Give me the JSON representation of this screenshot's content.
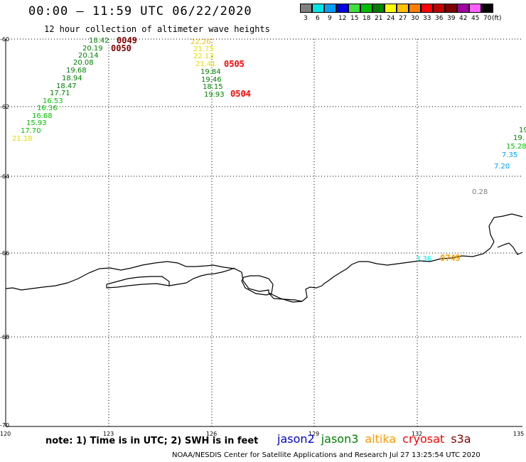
{
  "header": {
    "title": "00:00 – 11:59 UTC 06/22/2020",
    "subtitle": "12 hour collection of altimeter wave heights"
  },
  "legend": {
    "unit": "(ft)",
    "labels": [
      "3",
      "6",
      "9",
      "12",
      "15",
      "18",
      "21",
      "24",
      "27",
      "30",
      "33",
      "36",
      "39",
      "42",
      "45",
      "70"
    ],
    "colors": [
      "#808080",
      "#00e5e5",
      "#00a0ff",
      "#0000e0",
      "#40e040",
      "#00c000",
      "#008000",
      "#ffff00",
      "#ffc000",
      "#ff8000",
      "#ff0000",
      "#c00000",
      "#800000",
      "#a000a0",
      "#ff60ff",
      "#000000"
    ]
  },
  "axes": {
    "lon_ticks": [
      "120",
      "123",
      "126",
      "129",
      "132",
      "135"
    ],
    "lat_ticks": [
      "-60",
      "-62",
      "-64",
      "-66",
      "-68",
      "-70"
    ]
  },
  "tracks": [
    {
      "value": "18.42",
      "color": "#008000"
    },
    {
      "value": "20.19",
      "color": "#008000"
    },
    {
      "value": "20.14",
      "color": "#008000"
    },
    {
      "value": "20.08",
      "color": "#008000"
    },
    {
      "value": "19.68",
      "color": "#008000"
    },
    {
      "value": "18.94",
      "color": "#008000"
    },
    {
      "value": "18.47",
      "color": "#008000"
    },
    {
      "value": "17.71",
      "color": "#008000"
    },
    {
      "value": "16.53",
      "color": "#00c000"
    },
    {
      "value": "16.36",
      "color": "#00c000"
    },
    {
      "value": "16.68",
      "color": "#00c000"
    },
    {
      "value": "15.93",
      "color": "#00c000"
    },
    {
      "value": "17.70",
      "color": "#00c000"
    },
    {
      "value": "21.18",
      "color": "#e0e000"
    },
    {
      "value": "22.26",
      "color": "#ffc000"
    },
    {
      "value": "21.75",
      "color": "#e0e000"
    },
    {
      "value": "22.13",
      "color": "#e0e000"
    },
    {
      "value": "21.41",
      "color": "#e0e000"
    },
    {
      "value": "19.84",
      "color": "#008000"
    },
    {
      "value": "19.46",
      "color": "#008000"
    },
    {
      "value": "18.15",
      "color": "#008000"
    },
    {
      "value": "19.93",
      "color": "#008000"
    },
    {
      "value": "19",
      "color": "#008000"
    },
    {
      "value": "19.",
      "color": "#008000"
    },
    {
      "value": "15.28",
      "color": "#00c000"
    },
    {
      "value": "7.35",
      "color": "#00a0ff"
    },
    {
      "value": "7.20",
      "color": "#00a0ff"
    },
    {
      "value": "0.28",
      "color": "#808080"
    },
    {
      "value": "3.36",
      "color": "#00e5e5"
    }
  ],
  "passes": [
    {
      "label": "0049",
      "color": "#800000"
    },
    {
      "label": "0050",
      "color": "#800000"
    },
    {
      "label": "0505",
      "color": "#ff0000"
    },
    {
      "label": "0504",
      "color": "#ff0000"
    },
    {
      "label": "0749",
      "color": "#ffa000"
    }
  ],
  "footer": {
    "note": "note: 1) Time is in UTC; 2) SWH is in feet",
    "satellites": [
      {
        "name": "jason2",
        "color": "#0000cc"
      },
      {
        "name": "jason3",
        "color": "#008000"
      },
      {
        "name": "altika",
        "color": "#ff9900"
      },
      {
        "name": "cryosat",
        "color": "#ff0000"
      },
      {
        "name": "s3a",
        "color": "#800000"
      }
    ],
    "credit": "NOAA/NESDIS Center for Satellite Applications and Research   Jul 27 13:25:54 UTC 2020"
  }
}
